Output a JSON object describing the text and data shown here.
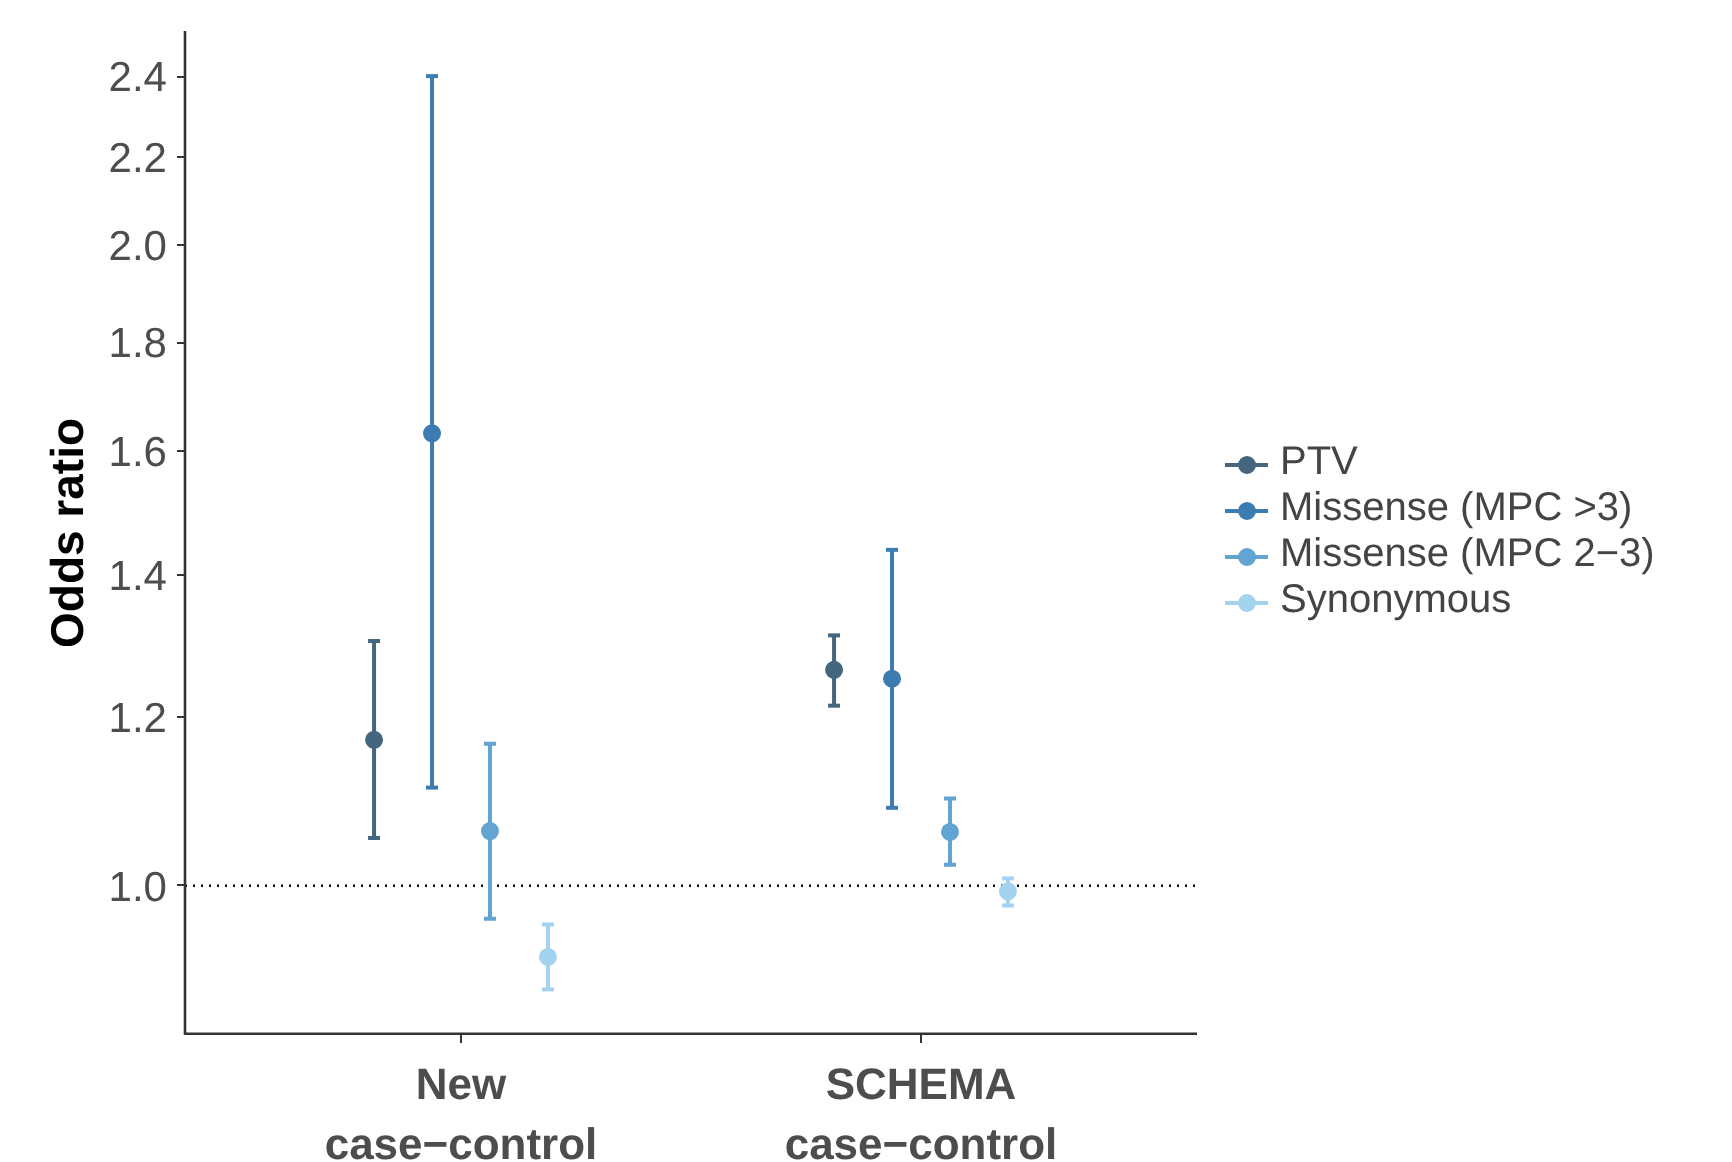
{
  "chart_data": {
    "type": "scatter",
    "ylabel": "Odds ratio",
    "categories": [
      "New\ncase−control",
      "SCHEMA\ncase−control"
    ],
    "series": [
      {
        "name": "PTV",
        "color": "#44667f",
        "values": [
          1.171,
          1.263
        ],
        "errors": [
          [
            1.053,
            1.303
          ],
          [
            1.215,
            1.311
          ]
        ]
      },
      {
        "name": "Missense (MPC >3)",
        "color": "#3d7cb0",
        "values": [
          1.631,
          1.251
        ],
        "errors": [
          [
            1.112,
            2.4
          ],
          [
            1.088,
            1.438
          ]
        ]
      },
      {
        "name": "Missense (MPC 2−3)",
        "color": "#62a4d2",
        "values": [
          1.061,
          1.06
        ],
        "errors": [
          [
            0.965,
            1.166
          ],
          [
            1.023,
            1.099
          ]
        ]
      },
      {
        "name": "Synonymous",
        "color": "#a3d3ef",
        "values": [
          0.926,
          0.994
        ],
        "errors": [
          [
            0.894,
            0.959
          ],
          [
            0.979,
            1.008
          ]
        ]
      }
    ],
    "log": "y",
    "ylim": [
      0.851,
      2.52
    ],
    "yticks": [
      {
        "value": 1.0,
        "label": "1.0"
      },
      {
        "value": 1.2,
        "label": "1.2"
      },
      {
        "value": 1.4,
        "label": "1.4"
      },
      {
        "value": 1.6,
        "label": "1.6"
      },
      {
        "value": 1.8,
        "label": "1.8"
      },
      {
        "value": 2.0,
        "label": "2.0"
      },
      {
        "value": 2.2,
        "label": "2.2"
      },
      {
        "value": 2.4,
        "label": "2.4"
      }
    ],
    "ref_lines": [
      {
        "axis": "y",
        "value": 1.0,
        "label": null,
        "line_style": "dotted",
        "color": "#000000"
      }
    ],
    "grid": false,
    "legend": "right",
    "marker": "circle"
  }
}
